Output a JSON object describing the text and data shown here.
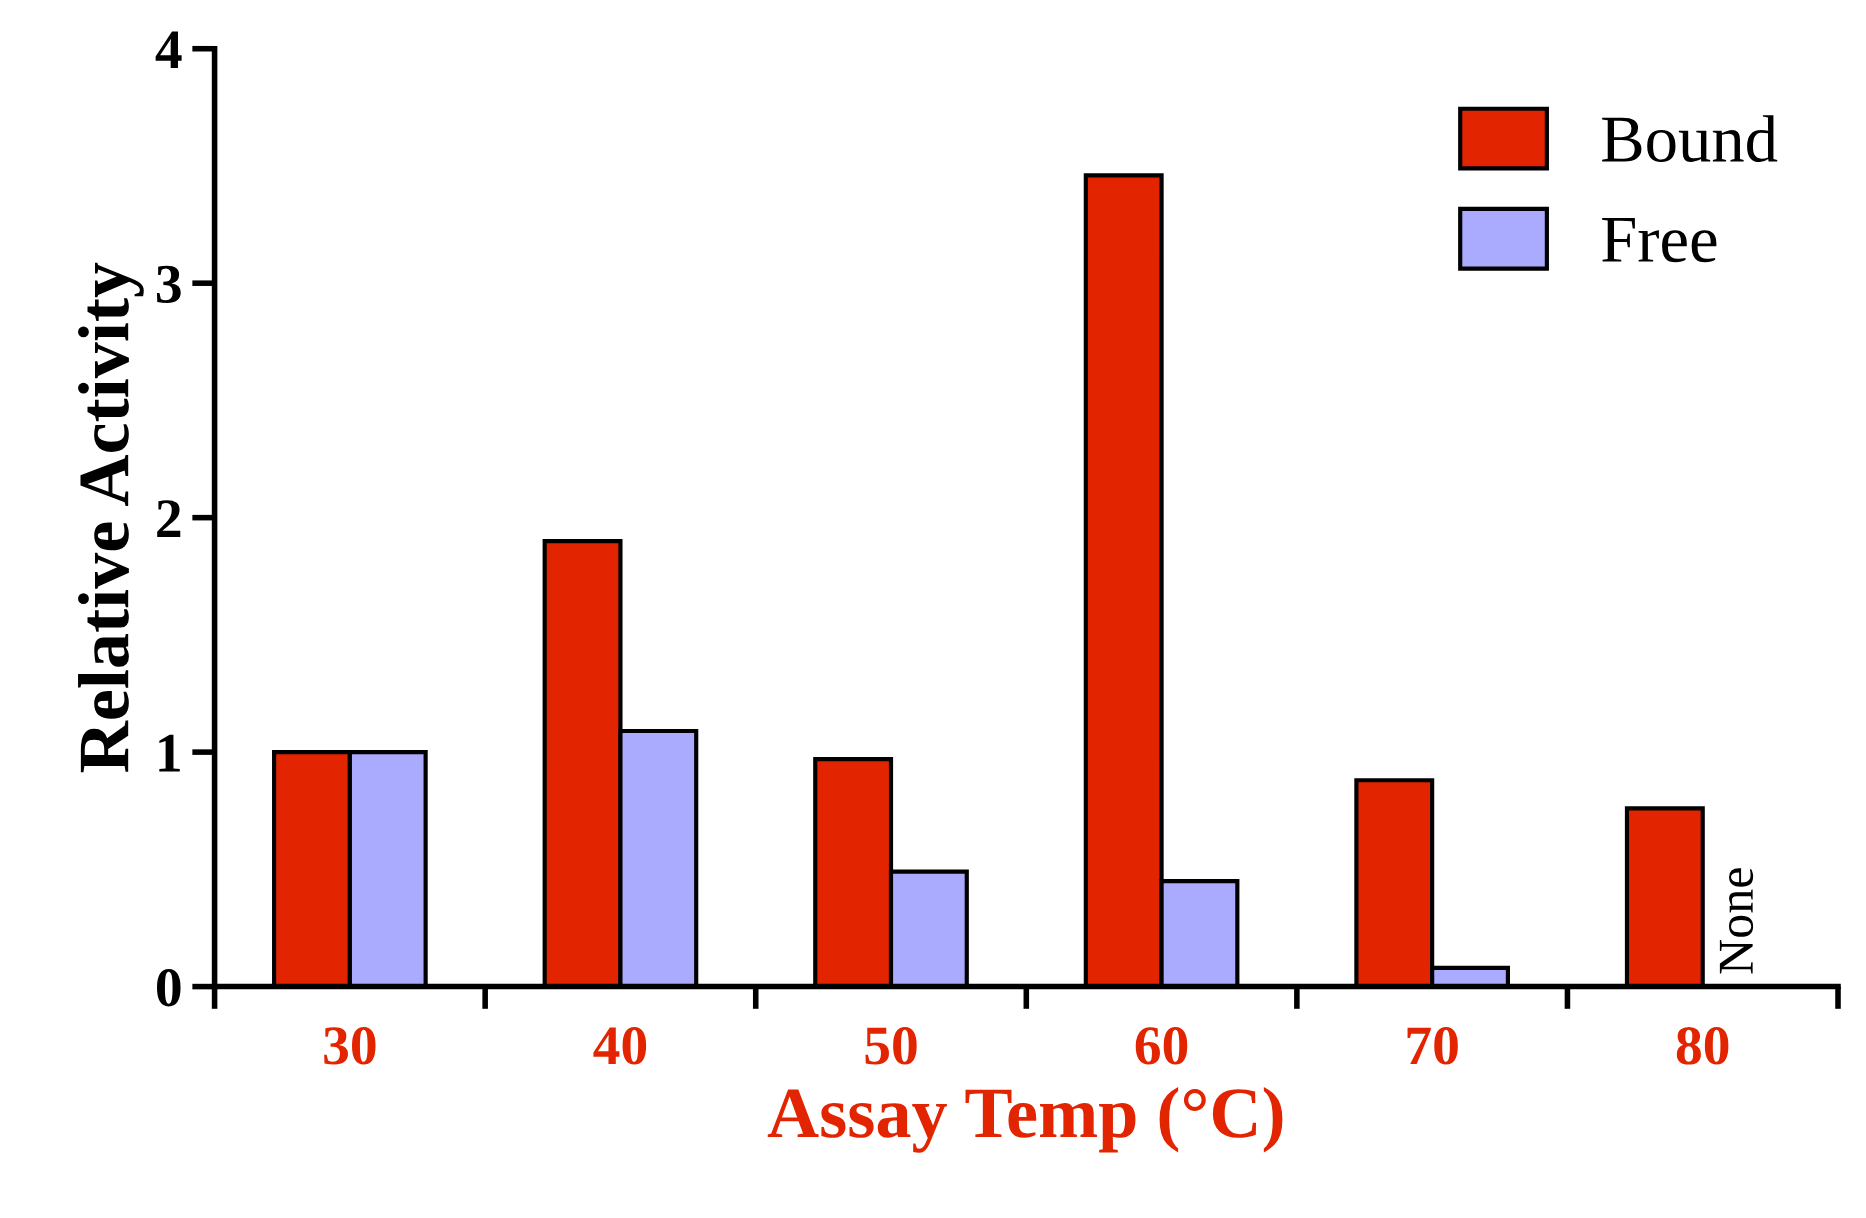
{
  "chart_data": {
    "type": "bar",
    "xlabel": "Assay Temp (°C)",
    "ylabel": "Relative Activity",
    "categories": [
      "30",
      "40",
      "50",
      "60",
      "70",
      "80"
    ],
    "series": [
      {
        "name": "Bound",
        "color": "#e32400",
        "values": [
          1.0,
          1.9,
          0.97,
          3.46,
          0.88,
          0.76
        ]
      },
      {
        "name": "Free",
        "color": "#aaaaff",
        "values": [
          1.0,
          1.09,
          0.49,
          0.45,
          0.08,
          null
        ]
      }
    ],
    "ylim": [
      0,
      4
    ],
    "yticks": [
      0,
      1,
      2,
      3,
      4
    ],
    "grid": false,
    "legend": "top right",
    "annotations": [
      {
        "text": "None",
        "x": "80",
        "y": 0
      }
    ]
  }
}
